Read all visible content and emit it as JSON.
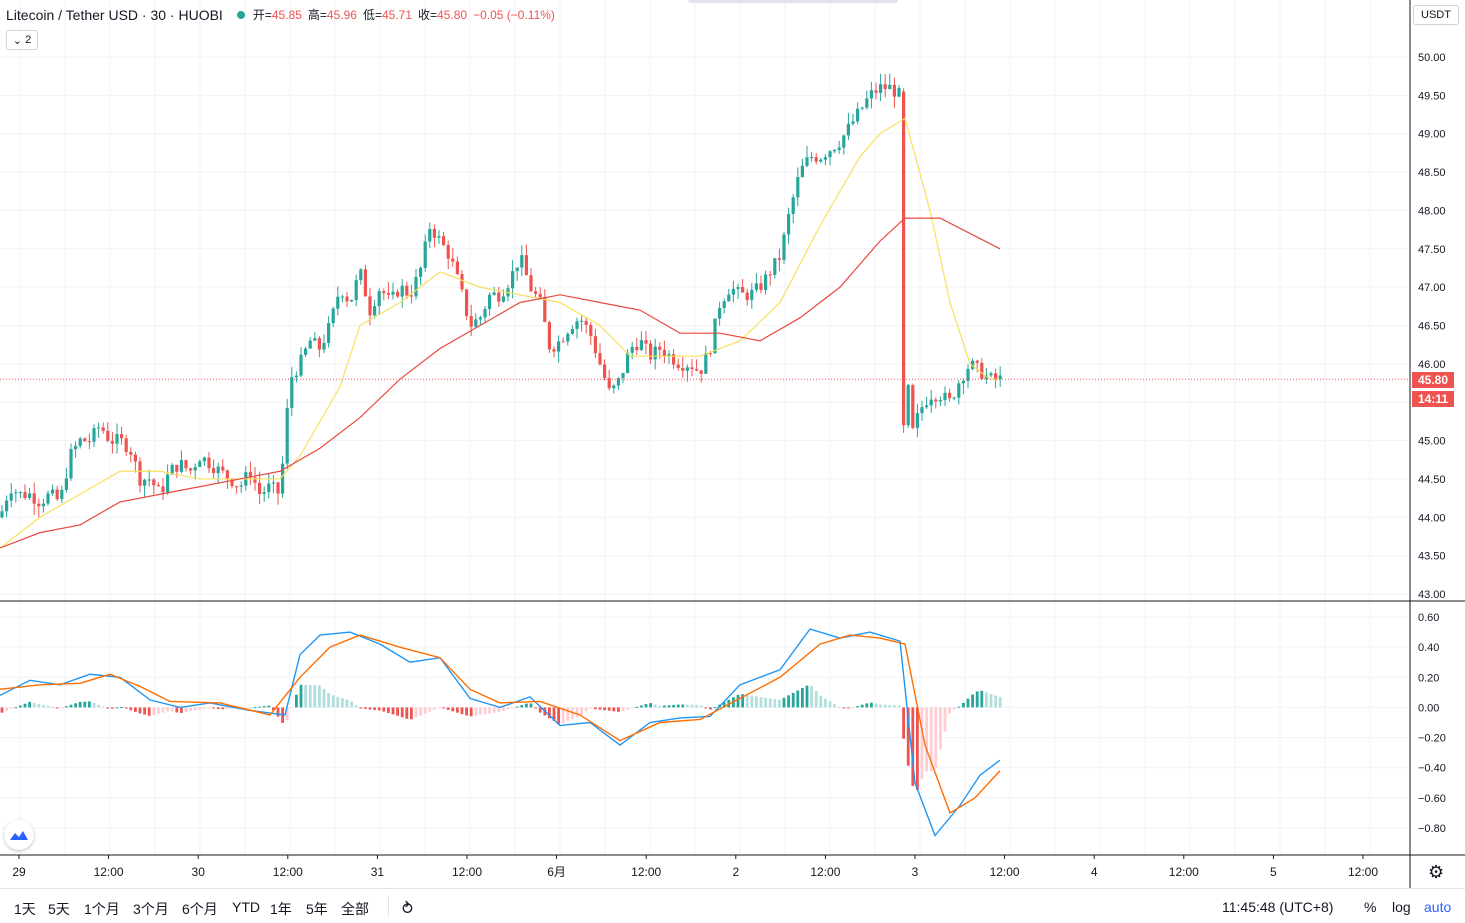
{
  "legend": {
    "symbol": "Litecoin / Tether USD · 30 · HUOBI",
    "open_label": "开",
    "open": "45.85",
    "high_label": "高",
    "high": "45.96",
    "low_label": "低",
    "low": "45.71",
    "close_label": "收",
    "close": "45.80",
    "change": "−0.05 (−0.11%)",
    "collapse_count": "2"
  },
  "price_axis": {
    "currency": "USDT",
    "ticks": [
      "50.00",
      "49.50",
      "49.00",
      "48.50",
      "48.00",
      "47.50",
      "47.00",
      "46.50",
      "46.00",
      "45.50",
      "45.00",
      "44.50",
      "44.00",
      "43.50",
      "43.00"
    ],
    "last_price": "45.80",
    "countdown": "14:11"
  },
  "macd_axis": {
    "ticks": [
      "0.60",
      "0.40",
      "0.20",
      "0.00",
      "−0.20",
      "−0.40",
      "−0.60",
      "−0.80"
    ]
  },
  "time_axis": {
    "labels": [
      "29",
      "12:00",
      "30",
      "12:00",
      "31",
      "12:00",
      "6月",
      "12:00",
      "2",
      "12:00",
      "3",
      "12:00",
      "4",
      "12:00",
      "5",
      "12:00"
    ]
  },
  "bottom_bar": {
    "ranges": [
      "1天",
      "5天",
      "1个月",
      "3个月",
      "6个月",
      "YTD",
      "1年",
      "5年",
      "全部"
    ],
    "clock": "11:45:48 (UTC+8)",
    "percent": "%",
    "log": "log",
    "auto": "auto"
  },
  "colors": {
    "up": "#26a69a",
    "down": "#ef5350",
    "ma_fast": "#f7e05a",
    "ma_slow": "#e8483e",
    "macd_line": "#2196f3",
    "signal_line": "#ff6d00"
  },
  "chart_data": {
    "type": "candlestick",
    "title": "Litecoin / Tether USD · 30 · HUOBI",
    "ylim": [
      43.0,
      50.0
    ],
    "path_close": [
      [
        0,
        44.0
      ],
      [
        10,
        44.4
      ],
      [
        20,
        44.3
      ],
      [
        30,
        44.3
      ],
      [
        40,
        44.2
      ],
      [
        50,
        44.3
      ],
      [
        60,
        44.2
      ],
      [
        70,
        44.8
      ],
      [
        80,
        45.0
      ],
      [
        90,
        45.0
      ],
      [
        100,
        45.2
      ],
      [
        110,
        45.0
      ],
      [
        120,
        45.0
      ],
      [
        130,
        44.9
      ],
      [
        140,
        44.5
      ],
      [
        150,
        44.5
      ],
      [
        160,
        44.3
      ],
      [
        170,
        44.6
      ],
      [
        180,
        44.7
      ],
      [
        190,
        44.6
      ],
      [
        200,
        44.8
      ],
      [
        210,
        44.7
      ],
      [
        220,
        44.6
      ],
      [
        230,
        44.5
      ],
      [
        240,
        44.4
      ],
      [
        250,
        44.6
      ],
      [
        260,
        44.3
      ],
      [
        270,
        44.4
      ],
      [
        280,
        44.3
      ],
      [
        290,
        45.8
      ],
      [
        300,
        46.0
      ],
      [
        310,
        46.3
      ],
      [
        320,
        46.2
      ],
      [
        330,
        46.5
      ],
      [
        340,
        47.0
      ],
      [
        350,
        46.8
      ],
      [
        360,
        47.2
      ],
      [
        370,
        46.7
      ],
      [
        380,
        47.0
      ],
      [
        390,
        46.8
      ],
      [
        400,
        47.0
      ],
      [
        410,
        46.9
      ],
      [
        420,
        47.2
      ],
      [
        430,
        47.8
      ],
      [
        440,
        47.6
      ],
      [
        450,
        47.4
      ],
      [
        460,
        47.0
      ],
      [
        470,
        46.5
      ],
      [
        480,
        46.6
      ],
      [
        490,
        46.9
      ],
      [
        500,
        46.9
      ],
      [
        510,
        47.1
      ],
      [
        520,
        47.4
      ],
      [
        530,
        47.0
      ],
      [
        540,
        46.8
      ],
      [
        550,
        46.2
      ],
      [
        560,
        46.3
      ],
      [
        570,
        46.5
      ],
      [
        580,
        46.6
      ],
      [
        590,
        46.4
      ],
      [
        600,
        46.0
      ],
      [
        610,
        45.6
      ],
      [
        620,
        45.8
      ],
      [
        630,
        46.2
      ],
      [
        640,
        46.3
      ],
      [
        650,
        46.1
      ],
      [
        660,
        46.2
      ],
      [
        670,
        46.1
      ],
      [
        680,
        46.0
      ],
      [
        690,
        46.0
      ],
      [
        700,
        45.9
      ],
      [
        710,
        46.2
      ],
      [
        720,
        46.8
      ],
      [
        730,
        47.0
      ],
      [
        740,
        46.9
      ],
      [
        750,
        46.9
      ],
      [
        760,
        47.0
      ],
      [
        770,
        47.2
      ],
      [
        780,
        47.4
      ],
      [
        790,
        48.0
      ],
      [
        800,
        48.5
      ],
      [
        810,
        48.7
      ],
      [
        820,
        48.7
      ],
      [
        830,
        48.8
      ],
      [
        840,
        48.9
      ],
      [
        850,
        49.1
      ],
      [
        860,
        49.3
      ],
      [
        870,
        49.5
      ],
      [
        880,
        49.6
      ],
      [
        890,
        49.6
      ],
      [
        900,
        49.5
      ],
      [
        905,
        46.8
      ],
      [
        910,
        45.0
      ],
      [
        920,
        45.4
      ],
      [
        930,
        45.6
      ],
      [
        940,
        45.6
      ],
      [
        950,
        45.5
      ],
      [
        960,
        45.8
      ],
      [
        970,
        46.0
      ],
      [
        980,
        45.9
      ],
      [
        990,
        45.8
      ],
      [
        1000,
        45.8
      ]
    ],
    "ma_fast": [
      [
        0,
        43.6
      ],
      [
        40,
        44.0
      ],
      [
        80,
        44.3
      ],
      [
        120,
        44.6
      ],
      [
        160,
        44.6
      ],
      [
        200,
        44.5
      ],
      [
        240,
        44.5
      ],
      [
        280,
        44.5
      ],
      [
        300,
        44.8
      ],
      [
        340,
        45.7
      ],
      [
        360,
        46.5
      ],
      [
        400,
        46.8
      ],
      [
        440,
        47.2
      ],
      [
        480,
        47.0
      ],
      [
        520,
        46.9
      ],
      [
        560,
        46.8
      ],
      [
        600,
        46.5
      ],
      [
        630,
        46.1
      ],
      [
        660,
        46.1
      ],
      [
        700,
        46.1
      ],
      [
        740,
        46.3
      ],
      [
        780,
        46.8
      ],
      [
        820,
        47.8
      ],
      [
        860,
        48.7
      ],
      [
        880,
        49.0
      ],
      [
        905,
        49.2
      ],
      [
        930,
        48.0
      ],
      [
        950,
        46.8
      ],
      [
        970,
        46.0
      ],
      [
        990,
        45.8
      ],
      [
        1000,
        45.8
      ]
    ],
    "ma_slow": [
      [
        0,
        43.6
      ],
      [
        40,
        43.8
      ],
      [
        80,
        43.9
      ],
      [
        120,
        44.2
      ],
      [
        160,
        44.3
      ],
      [
        200,
        44.4
      ],
      [
        240,
        44.5
      ],
      [
        280,
        44.6
      ],
      [
        320,
        44.9
      ],
      [
        360,
        45.3
      ],
      [
        400,
        45.8
      ],
      [
        440,
        46.2
      ],
      [
        480,
        46.5
      ],
      [
        520,
        46.8
      ],
      [
        560,
        46.9
      ],
      [
        600,
        46.8
      ],
      [
        640,
        46.7
      ],
      [
        680,
        46.4
      ],
      [
        720,
        46.4
      ],
      [
        760,
        46.3
      ],
      [
        800,
        46.6
      ],
      [
        840,
        47.0
      ],
      [
        880,
        47.6
      ],
      [
        905,
        47.9
      ],
      [
        940,
        47.9
      ],
      [
        970,
        47.7
      ],
      [
        1000,
        47.5
      ]
    ],
    "macd": [
      [
        0,
        0.08
      ],
      [
        30,
        0.18
      ],
      [
        60,
        0.15
      ],
      [
        90,
        0.22
      ],
      [
        120,
        0.2
      ],
      [
        150,
        0.05
      ],
      [
        180,
        0.0
      ],
      [
        210,
        0.03
      ],
      [
        250,
        -0.02
      ],
      [
        285,
        -0.05
      ],
      [
        300,
        0.35
      ],
      [
        320,
        0.48
      ],
      [
        350,
        0.5
      ],
      [
        380,
        0.42
      ],
      [
        410,
        0.3
      ],
      [
        440,
        0.33
      ],
      [
        470,
        0.06
      ],
      [
        500,
        0.0
      ],
      [
        530,
        0.07
      ],
      [
        560,
        -0.12
      ],
      [
        590,
        -0.1
      ],
      [
        620,
        -0.25
      ],
      [
        650,
        -0.1
      ],
      [
        680,
        -0.07
      ],
      [
        710,
        -0.06
      ],
      [
        740,
        0.15
      ],
      [
        780,
        0.25
      ],
      [
        810,
        0.52
      ],
      [
        840,
        0.46
      ],
      [
        870,
        0.5
      ],
      [
        900,
        0.44
      ],
      [
        915,
        -0.5
      ],
      [
        935,
        -0.85
      ],
      [
        960,
        -0.65
      ],
      [
        980,
        -0.45
      ],
      [
        1000,
        -0.35
      ]
    ],
    "signal": [
      [
        0,
        0.12
      ],
      [
        40,
        0.15
      ],
      [
        80,
        0.16
      ],
      [
        110,
        0.22
      ],
      [
        140,
        0.14
      ],
      [
        170,
        0.04
      ],
      [
        220,
        0.03
      ],
      [
        270,
        -0.05
      ],
      [
        300,
        0.2
      ],
      [
        330,
        0.4
      ],
      [
        360,
        0.48
      ],
      [
        400,
        0.4
      ],
      [
        440,
        0.33
      ],
      [
        470,
        0.12
      ],
      [
        500,
        0.03
      ],
      [
        540,
        0.04
      ],
      [
        580,
        -0.05
      ],
      [
        620,
        -0.22
      ],
      [
        660,
        -0.1
      ],
      [
        700,
        -0.08
      ],
      [
        740,
        0.06
      ],
      [
        780,
        0.2
      ],
      [
        820,
        0.42
      ],
      [
        850,
        0.48
      ],
      [
        880,
        0.46
      ],
      [
        905,
        0.42
      ],
      [
        925,
        -0.25
      ],
      [
        950,
        -0.7
      ],
      [
        975,
        -0.6
      ],
      [
        1000,
        -0.42
      ]
    ]
  }
}
